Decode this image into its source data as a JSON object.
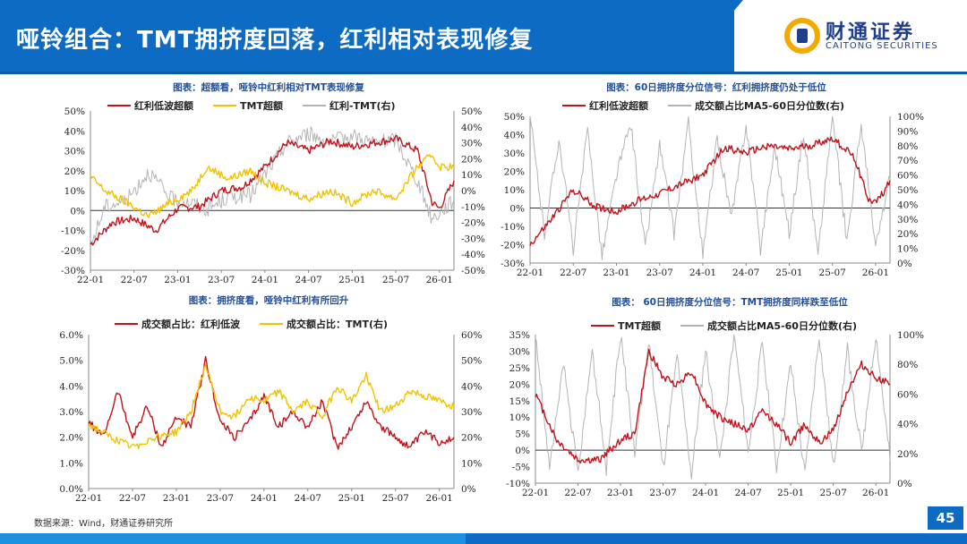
{
  "header": {
    "title": "哑铃组合：TMT拥挤度回落，红利相对表现修复",
    "logo_cn": "财通证券",
    "logo_en": "CAITONG SECURITIES"
  },
  "footer": {
    "source": "数据来源：Wind，财通证券研究所",
    "page_number": "45"
  },
  "colors": {
    "red": "#c0141c",
    "yellow": "#f2c200",
    "gray": "#b4b4b4",
    "title_blue": "#1f4e9c",
    "brand_blue": "#0d6bc4"
  },
  "chart_data": [
    {
      "id": "c1",
      "type": "line",
      "title": "图表：超额看，哑铃中红利相对TMT表现修复",
      "x_ticks": [
        "22-01",
        "22-07",
        "23-01",
        "23-07",
        "24-01",
        "24-07",
        "25-01",
        "25-07",
        "26-01"
      ],
      "x_range": [
        "2022-01",
        "2026-03"
      ],
      "y_left": {
        "ticks": [
          "50%",
          "40%",
          "30%",
          "20%",
          "10%",
          "0%",
          "-10%",
          "-20%",
          "-30%"
        ],
        "range": [
          -30,
          50
        ]
      },
      "y_right": {
        "ticks": [
          "50%",
          "40%",
          "30%",
          "20%",
          "10%",
          "0%",
          "-10%",
          "-20%",
          "-30%",
          "-40%",
          "-50%"
        ],
        "range": [
          -50,
          50
        ]
      },
      "series": [
        {
          "name": "红利低波超额",
          "color": "#c0141c",
          "axis": "left",
          "anchors": [
            [
              "2022-01",
              -17
            ],
            [
              "2022-04",
              -6
            ],
            [
              "2022-07",
              -4
            ],
            [
              "2022-10",
              -10
            ],
            [
              "2023-01",
              1
            ],
            [
              "2023-04",
              2
            ],
            [
              "2023-07",
              10
            ],
            [
              "2023-10",
              12
            ],
            [
              "2024-01",
              22
            ],
            [
              "2024-04",
              34
            ],
            [
              "2024-07",
              30
            ],
            [
              "2024-10",
              35
            ],
            [
              "2025-01",
              32
            ],
            [
              "2025-04",
              34
            ],
            [
              "2025-07",
              36
            ],
            [
              "2025-10",
              30
            ],
            [
              "2025-12",
              4
            ],
            [
              "2026-01",
              1
            ],
            [
              "2026-02",
              8
            ],
            [
              "2026-03",
              15
            ]
          ]
        },
        {
          "name": "TMT超额",
          "color": "#f2c200",
          "axis": "left",
          "anchors": [
            [
              "2022-01",
              17
            ],
            [
              "2022-03",
              10
            ],
            [
              "2022-06",
              4
            ],
            [
              "2022-09",
              -3
            ],
            [
              "2022-12",
              4
            ],
            [
              "2023-03",
              10
            ],
            [
              "2023-05",
              22
            ],
            [
              "2023-08",
              16
            ],
            [
              "2023-11",
              20
            ],
            [
              "2024-01",
              14
            ],
            [
              "2024-04",
              10
            ],
            [
              "2024-07",
              6
            ],
            [
              "2024-10",
              10
            ],
            [
              "2025-01",
              4
            ],
            [
              "2025-04",
              10
            ],
            [
              "2025-07",
              6
            ],
            [
              "2025-10",
              22
            ],
            [
              "2025-12",
              28
            ],
            [
              "2026-01",
              22
            ],
            [
              "2026-03",
              22
            ]
          ]
        },
        {
          "name": "红利-TMT(右)",
          "color": "#b4b4b4",
          "axis": "right",
          "anchors": [
            [
              "2022-01",
              -35
            ],
            [
              "2022-03",
              -10
            ],
            [
              "2022-06",
              -6
            ],
            [
              "2022-09",
              12
            ],
            [
              "2022-12",
              -5
            ],
            [
              "2023-03",
              -8
            ],
            [
              "2023-05",
              -12
            ],
            [
              "2023-08",
              -4
            ],
            [
              "2023-11",
              -3
            ],
            [
              "2024-01",
              10
            ],
            [
              "2024-04",
              30
            ],
            [
              "2024-07",
              36
            ],
            [
              "2024-10",
              30
            ],
            [
              "2025-01",
              35
            ],
            [
              "2025-04",
              30
            ],
            [
              "2025-07",
              32
            ],
            [
              "2025-10",
              6
            ],
            [
              "2025-12",
              -18
            ],
            [
              "2026-01",
              -14
            ],
            [
              "2026-03",
              -6
            ]
          ]
        }
      ]
    },
    {
      "id": "c2",
      "type": "line",
      "title": "图表：60日拥挤度分位信号：红利拥挤度仍处于低位",
      "x_ticks": [
        "22-01",
        "22-07",
        "23-01",
        "23-07",
        "24-01",
        "24-07",
        "25-01",
        "25-07",
        "26-01"
      ],
      "x_range": [
        "2022-01",
        "2026-03"
      ],
      "y_left": {
        "ticks": [
          "50%",
          "40%",
          "30%",
          "20%",
          "10%",
          "0%",
          "-10%",
          "-20%",
          "-30%"
        ],
        "range": [
          -30,
          50
        ]
      },
      "y_right": {
        "ticks": [
          "100%",
          "90%",
          "80%",
          "70%",
          "60%",
          "50%",
          "40%",
          "30%",
          "20%",
          "10%",
          "0%"
        ],
        "range": [
          0,
          100
        ]
      },
      "series": [
        {
          "name": "红利低波超额",
          "color": "#c0141c",
          "axis": "left",
          "anchors": [
            [
              "2022-01",
              -20
            ],
            [
              "2022-04",
              -6
            ],
            [
              "2022-07",
              10
            ],
            [
              "2022-10",
              1
            ],
            [
              "2023-01",
              -2
            ],
            [
              "2023-04",
              4
            ],
            [
              "2023-07",
              8
            ],
            [
              "2023-10",
              13
            ],
            [
              "2024-01",
              18
            ],
            [
              "2024-04",
              33
            ],
            [
              "2024-07",
              30
            ],
            [
              "2024-10",
              34
            ],
            [
              "2025-01",
              32
            ],
            [
              "2025-04",
              34
            ],
            [
              "2025-07",
              38
            ],
            [
              "2025-10",
              28
            ],
            [
              "2025-12",
              5
            ],
            [
              "2026-01",
              3
            ],
            [
              "2026-02",
              8
            ],
            [
              "2026-03",
              15
            ]
          ]
        },
        {
          "name": "成交额占比MA5-60日分位数(右)",
          "color": "#b4b4b4",
          "axis": "right",
          "anchors": [
            [
              "2022-01",
              100
            ],
            [
              "2022-03",
              20
            ],
            [
              "2022-05",
              85
            ],
            [
              "2022-07",
              10
            ],
            [
              "2022-09",
              90
            ],
            [
              "2022-11",
              5
            ],
            [
              "2023-01",
              60
            ],
            [
              "2023-03",
              95
            ],
            [
              "2023-05",
              10
            ],
            [
              "2023-07",
              80
            ],
            [
              "2023-09",
              20
            ],
            [
              "2023-11",
              95
            ],
            [
              "2024-01",
              5
            ],
            [
              "2024-03",
              85
            ],
            [
              "2024-05",
              30
            ],
            [
              "2024-07",
              95
            ],
            [
              "2024-09",
              10
            ],
            [
              "2024-11",
              80
            ],
            [
              "2025-01",
              20
            ],
            [
              "2025-03",
              90
            ],
            [
              "2025-05",
              5
            ],
            [
              "2025-07",
              100
            ],
            [
              "2025-09",
              15
            ],
            [
              "2025-11",
              95
            ],
            [
              "2026-01",
              10
            ],
            [
              "2026-03",
              60
            ]
          ]
        }
      ]
    },
    {
      "id": "c3",
      "type": "line",
      "title": "图表：拥挤度看，哑铃中红利有所回升",
      "x_ticks": [
        "22-01",
        "22-07",
        "23-01",
        "23-07",
        "24-01",
        "24-07",
        "25-01",
        "25-07",
        "26-01"
      ],
      "x_range": [
        "2022-01",
        "2026-03"
      ],
      "y_left": {
        "ticks": [
          "6.0%",
          "5.0%",
          "4.0%",
          "3.0%",
          "2.0%",
          "1.0%",
          "0.0%"
        ],
        "range": [
          0,
          6
        ]
      },
      "y_right": {
        "ticks": [
          "60%",
          "50%",
          "40%",
          "30%",
          "20%",
          "10%",
          "0%"
        ],
        "range": [
          0,
          60
        ]
      },
      "series": [
        {
          "name": "成交额占比：红利低波",
          "color": "#c0141c",
          "axis": "left",
          "anchors": [
            [
              "2022-01",
              2.6
            ],
            [
              "2022-03",
              2.0
            ],
            [
              "2022-05",
              3.8
            ],
            [
              "2022-07",
              2.0
            ],
            [
              "2022-09",
              3.2
            ],
            [
              "2022-11",
              1.6
            ],
            [
              "2023-01",
              2.8
            ],
            [
              "2023-03",
              2.4
            ],
            [
              "2023-05",
              5.0
            ],
            [
              "2023-07",
              2.6
            ],
            [
              "2023-09",
              2.0
            ],
            [
              "2023-11",
              2.6
            ],
            [
              "2024-01",
              3.6
            ],
            [
              "2024-03",
              2.4
            ],
            [
              "2024-05",
              3.0
            ],
            [
              "2024-07",
              2.4
            ],
            [
              "2024-09",
              3.4
            ],
            [
              "2024-11",
              1.6
            ],
            [
              "2025-01",
              2.4
            ],
            [
              "2025-03",
              3.4
            ],
            [
              "2025-05",
              2.4
            ],
            [
              "2025-07",
              2.0
            ],
            [
              "2025-09",
              1.6
            ],
            [
              "2025-11",
              2.2
            ],
            [
              "2026-01",
              1.8
            ],
            [
              "2026-03",
              2.0
            ]
          ]
        },
        {
          "name": "成交额占比：TMT(右)",
          "color": "#f2c200",
          "axis": "right",
          "anchors": [
            [
              "2022-01",
              25
            ],
            [
              "2022-04",
              20
            ],
            [
              "2022-07",
              16
            ],
            [
              "2022-10",
              20
            ],
            [
              "2023-01",
              22
            ],
            [
              "2023-03",
              30
            ],
            [
              "2023-05",
              48
            ],
            [
              "2023-07",
              30
            ],
            [
              "2023-09",
              28
            ],
            [
              "2023-11",
              36
            ],
            [
              "2024-01",
              34
            ],
            [
              "2024-03",
              38
            ],
            [
              "2024-05",
              30
            ],
            [
              "2024-07",
              34
            ],
            [
              "2024-09",
              28
            ],
            [
              "2024-11",
              40
            ],
            [
              "2025-01",
              34
            ],
            [
              "2025-03",
              44
            ],
            [
              "2025-05",
              30
            ],
            [
              "2025-07",
              32
            ],
            [
              "2025-09",
              38
            ],
            [
              "2025-11",
              36
            ],
            [
              "2026-01",
              34
            ],
            [
              "2026-03",
              32
            ]
          ]
        }
      ]
    },
    {
      "id": "c4",
      "type": "line",
      "title": "图表： 60日拥挤度分位信号：TMT拥挤度同样跌至低位",
      "x_ticks": [
        "22-01",
        "22-07",
        "23-01",
        "23-07",
        "24-01",
        "24-07",
        "25-01",
        "25-07",
        "26-01"
      ],
      "x_range": [
        "2022-01",
        "2026-03"
      ],
      "y_left": {
        "ticks": [
          "35%",
          "30%",
          "25%",
          "20%",
          "15%",
          "10%",
          "5%",
          "0%",
          "-5%",
          "-10%"
        ],
        "range": [
          -10,
          35
        ]
      },
      "y_right": {
        "ticks": [
          "100%",
          "80%",
          "60%",
          "40%",
          "20%",
          "0%"
        ],
        "range": [
          0,
          100
        ]
      },
      "series": [
        {
          "name": "TMT超额",
          "color": "#c0141c",
          "axis": "left",
          "anchors": [
            [
              "2022-01",
              17
            ],
            [
              "2022-04",
              3
            ],
            [
              "2022-07",
              -3
            ],
            [
              "2022-10",
              -3
            ],
            [
              "2023-01",
              3
            ],
            [
              "2023-03",
              5
            ],
            [
              "2023-05",
              30
            ],
            [
              "2023-07",
              22
            ],
            [
              "2023-09",
              20
            ],
            [
              "2023-11",
              24
            ],
            [
              "2024-01",
              14
            ],
            [
              "2024-03",
              10
            ],
            [
              "2024-05",
              8
            ],
            [
              "2024-07",
              6
            ],
            [
              "2024-09",
              12
            ],
            [
              "2024-11",
              8
            ],
            [
              "2025-01",
              2
            ],
            [
              "2025-03",
              8
            ],
            [
              "2025-05",
              2
            ],
            [
              "2025-07",
              6
            ],
            [
              "2025-09",
              18
            ],
            [
              "2025-11",
              26
            ],
            [
              "2026-01",
              22
            ],
            [
              "2026-03",
              20
            ]
          ]
        },
        {
          "name": "成交额占比MA5-60日分位数(右)",
          "color": "#b4b4b4",
          "axis": "right",
          "anchors": [
            [
              "2022-01",
              100
            ],
            [
              "2022-03",
              10
            ],
            [
              "2022-05",
              80
            ],
            [
              "2022-07",
              5
            ],
            [
              "2022-09",
              90
            ],
            [
              "2022-11",
              10
            ],
            [
              "2023-01",
              100
            ],
            [
              "2023-03",
              20
            ],
            [
              "2023-05",
              95
            ],
            [
              "2023-07",
              10
            ],
            [
              "2023-09",
              85
            ],
            [
              "2023-11",
              5
            ],
            [
              "2024-01",
              90
            ],
            [
              "2024-03",
              15
            ],
            [
              "2024-05",
              100
            ],
            [
              "2024-07",
              20
            ],
            [
              "2024-09",
              95
            ],
            [
              "2024-11",
              10
            ],
            [
              "2025-01",
              80
            ],
            [
              "2025-03",
              5
            ],
            [
              "2025-05",
              100
            ],
            [
              "2025-07",
              10
            ],
            [
              "2025-09",
              90
            ],
            [
              "2025-11",
              20
            ],
            [
              "2026-01",
              100
            ],
            [
              "2026-03",
              15
            ]
          ]
        }
      ]
    }
  ]
}
